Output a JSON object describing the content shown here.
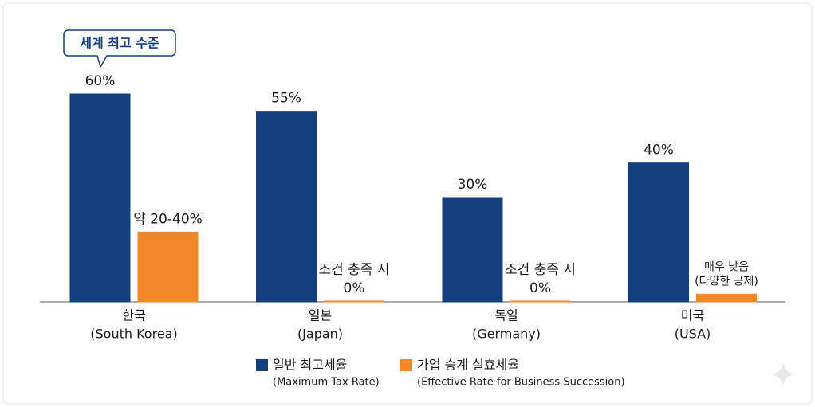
{
  "chart_data": {
    "type": "bar",
    "annotation": "세계 최고 수준",
    "categories": [
      [
        "한국",
        "(South Korea)"
      ],
      [
        "일본",
        "(Japan)"
      ],
      [
        "독일",
        "(Germany)"
      ],
      [
        "미국",
        "(USA)"
      ]
    ],
    "ylim": [
      0,
      60
    ],
    "series": [
      {
        "name": "일반 최고세율",
        "name_en": "(Maximum Tax Rate)",
        "color": "#143f7f",
        "values": [
          60,
          55,
          30,
          40
        ],
        "value_labels": [
          [
            "60%"
          ],
          [
            "55%"
          ],
          [
            "30%"
          ],
          [
            "40%"
          ]
        ]
      },
      {
        "name": "가업 승계 실효세율",
        "name_en": "(Effective Rate for Business Succession)",
        "color": "#f0882a",
        "values": [
          20,
          0,
          0,
          2
        ],
        "value_labels": [
          [
            "약 20-40%"
          ],
          [
            "조건 충족 시",
            "0%"
          ],
          [
            "조건 충족 시",
            "0%"
          ],
          [
            "매우 낮음",
            "(다양한 공제)"
          ]
        ]
      }
    ]
  }
}
